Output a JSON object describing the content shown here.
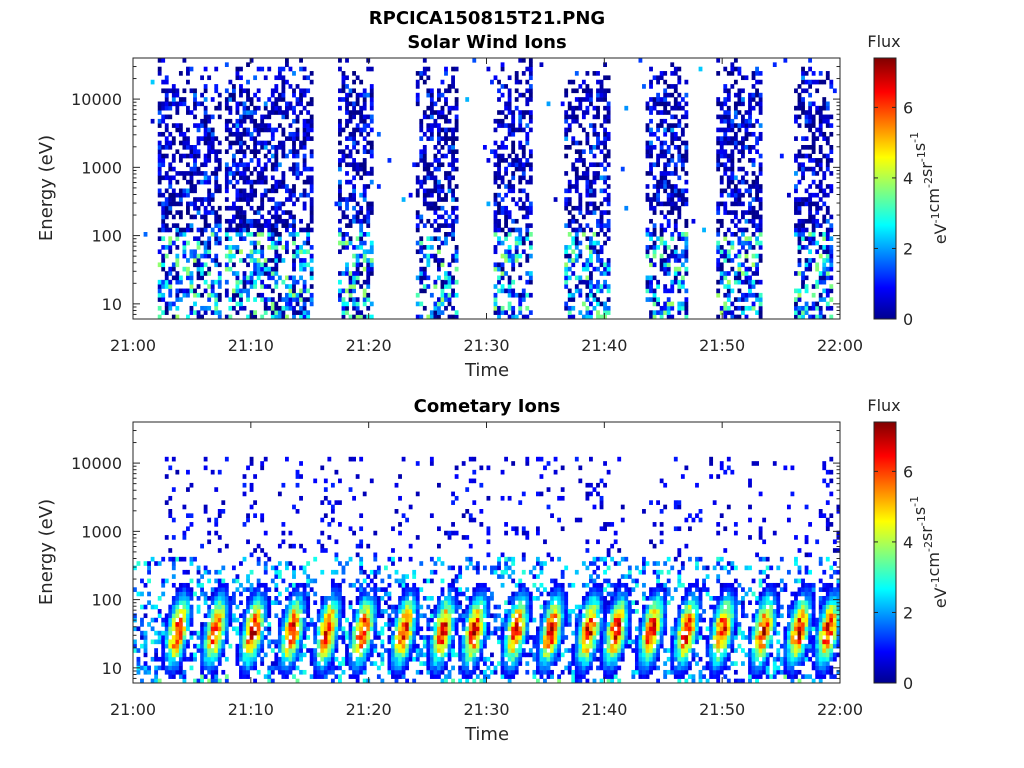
{
  "figure": {
    "title": "RPCICA150815T21.PNG"
  },
  "colormap": {
    "name": "jet",
    "stops": [
      "#00008f",
      "#0000ff",
      "#00ffff",
      "#ffff00",
      "#ff0000",
      "#800000"
    ]
  },
  "chart_data": [
    {
      "type": "heatmap",
      "title": "Solar Wind Ions",
      "xlabel": "Time",
      "ylabel": "Energy (eV)",
      "x_ticks": [
        "21:00",
        "21:10",
        "21:20",
        "21:30",
        "21:40",
        "21:50",
        "22:00"
      ],
      "x_range_minutes": [
        0,
        60
      ],
      "y_scale": "log",
      "y_ticks": [
        "10",
        "100",
        "1000",
        "10000"
      ],
      "y_range_ev": [
        6,
        40000
      ],
      "colorbar": {
        "title": "Flux",
        "unit_base": "eV",
        "unit_parts": [
          {
            "base": "eV",
            "exp": "-1"
          },
          {
            "base": "cm",
            "exp": "-2"
          },
          {
            "base": "sr",
            "exp": "-1"
          },
          {
            "base": "s",
            "exp": "-1"
          }
        ],
        "ticks": [
          "0",
          "2",
          "4",
          "6"
        ],
        "range": [
          0,
          7.4
        ]
      },
      "active_intervals_minutes": [
        [
          2.0,
          7.5
        ],
        [
          7.8,
          15.3
        ],
        [
          17.5,
          20.5
        ],
        [
          24.0,
          27.5
        ],
        [
          30.5,
          34.0
        ],
        [
          36.5,
          40.5
        ],
        [
          43.5,
          47.0
        ],
        [
          49.5,
          53.5
        ],
        [
          56.0,
          59.5
        ]
      ],
      "mean_flux_level": 1.0,
      "peak_flux_level": 4.0
    },
    {
      "type": "heatmap",
      "title": "Cometary Ions",
      "xlabel": "Time",
      "ylabel": "Energy (eV)",
      "x_ticks": [
        "21:00",
        "21:10",
        "21:20",
        "21:30",
        "21:40",
        "21:50",
        "22:00"
      ],
      "x_range_minutes": [
        0,
        60
      ],
      "y_scale": "log",
      "y_ticks": [
        "10",
        "100",
        "1000",
        "10000"
      ],
      "y_range_ev": [
        6,
        40000
      ],
      "colorbar": {
        "title": "Flux",
        "unit_parts": [
          {
            "base": "eV",
            "exp": "-1"
          },
          {
            "base": "cm",
            "exp": "-2"
          },
          {
            "base": "sr",
            "exp": "-1"
          },
          {
            "base": "s",
            "exp": "-1"
          }
        ],
        "ticks": [
          "0",
          "2",
          "4",
          "6"
        ],
        "range": [
          0,
          7.4
        ]
      },
      "burst_centers_minutes": [
        3.8,
        7.0,
        10.2,
        13.5,
        16.5,
        19.5,
        23.0,
        26.3,
        29.0,
        32.5,
        35.5,
        38.7,
        41.0,
        44.0,
        47.0,
        50.0,
        53.5,
        56.5,
        59.0
      ],
      "peak_energy_ev": 35,
      "peak_flux_level": 7.0
    }
  ]
}
